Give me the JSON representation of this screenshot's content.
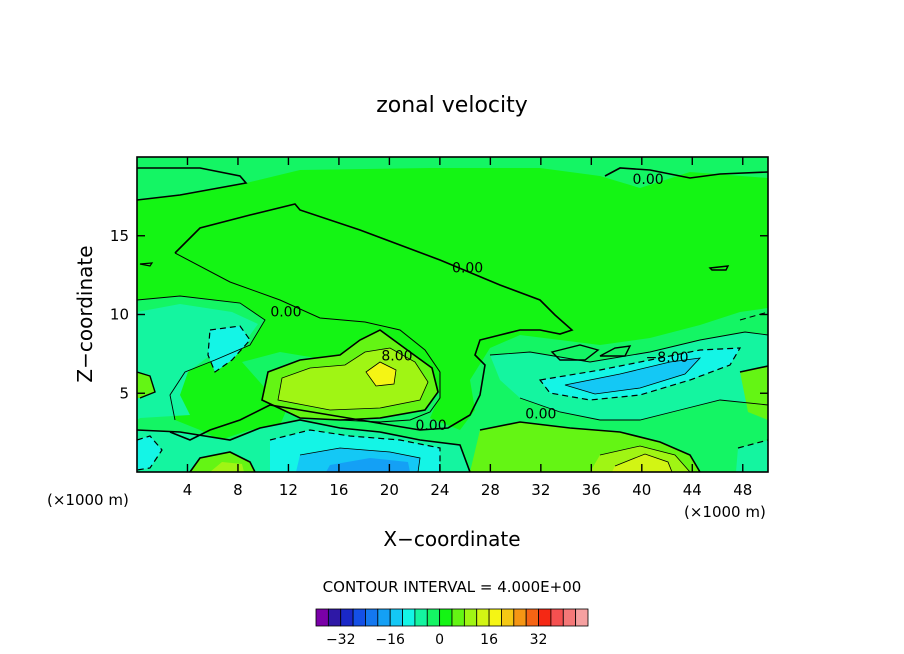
{
  "chart_data": {
    "type": "heatmap",
    "title": "zonal velocity",
    "xlabel": "X−coordinate",
    "ylabel": "Z−coordinate",
    "x_unit": "(×1000 m)",
    "xlim": [
      0,
      50
    ],
    "ylim": [
      0,
      20
    ],
    "x_ticks": [
      4,
      8,
      12,
      16,
      20,
      24,
      28,
      32,
      36,
      40,
      44,
      48
    ],
    "y_ticks": [
      5,
      10,
      15
    ],
    "contour_interval_text": "CONTOUR INTERVAL = 4.000E+00",
    "contour_labels": [
      {
        "text": "0.00",
        "x": 40.5,
        "y": 18.6
      },
      {
        "text": "0.00",
        "x": 26.2,
        "y": 13.0
      },
      {
        "text": "0.00",
        "x": 11.8,
        "y": 10.2
      },
      {
        "text": "8.00",
        "x": 20.6,
        "y": 7.4
      },
      {
        "text": "−8.00",
        "x": 42.0,
        "y": 7.3
      },
      {
        "text": "0.00",
        "x": 32.0,
        "y": 3.7
      },
      {
        "text": "0.00",
        "x": 23.3,
        "y": 3.0
      }
    ],
    "colorbar": {
      "ticks": [
        "−32",
        "−16",
        "0",
        "16",
        "32"
      ],
      "tick_values": [
        -32,
        -16,
        0,
        16,
        32
      ],
      "colors": [
        "#7a00a8",
        "#2e18a6",
        "#1a28c8",
        "#1450e6",
        "#1478f0",
        "#14a0f5",
        "#14c8f5",
        "#14f5e6",
        "#14f5a0",
        "#14f564",
        "#14f514",
        "#64f514",
        "#a0f514",
        "#d2f514",
        "#f5f514",
        "#f5c814",
        "#f59614",
        "#f56414",
        "#f52814",
        "#f55050",
        "#f57878",
        "#f5a0a0"
      ]
    },
    "color_levels": {
      "neg_8": "#14f5a0",
      "neg_16": "#14f5e6",
      "neg_20": "#14c8f5",
      "neg_28": "#14a0f5",
      "zero": "#14f514",
      "pos_4": "#64f514",
      "pos_8": "#a0f514",
      "pos_12": "#d2f514",
      "pos_16": "#f5f514",
      "neg_4": "#14f564"
    }
  }
}
